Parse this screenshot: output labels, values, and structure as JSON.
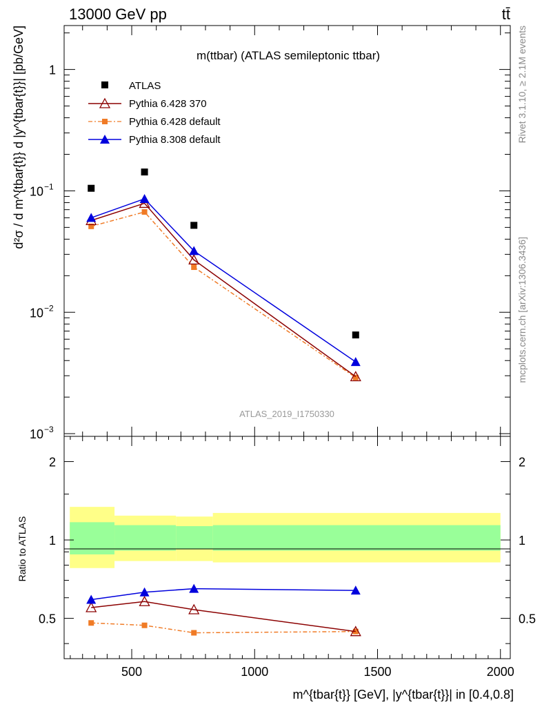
{
  "header": {
    "left": "13000 GeV pp",
    "right": "tt̄"
  },
  "side_labels": {
    "rivet": "Rivet 3.1.10, ≥ 2.1M events",
    "mcplots": "mcplots.cern.ch [arXiv:1306.3436]"
  },
  "chart_data": {
    "type": "scatter",
    "title": "m(ttbar) (ATLAS semileptonic ttbar)",
    "analysis_id": "ATLAS_2019_I1750330",
    "xlabel": "m^{tbar{t}} [GeV], |y^{tbar{t}}| in [0.4,0.8]",
    "ylabel": "d²σ / d m^{tbar{t}} d |y^{tbar{t}}| [pb/GeV]",
    "ratio_ylabel": "Ratio to ATLAS",
    "xlim": [
      225,
      2040
    ],
    "ylim": [
      0.00095,
      2.3
    ],
    "yscale": "log",
    "ratio_ylim": [
      0.35,
      2.5
    ],
    "x_ticks": [
      "500",
      "1000",
      "1500",
      "2000"
    ],
    "y_ticks": [
      "1",
      "10^-1",
      "10^-2",
      "10^-3"
    ],
    "ratio_y_ticks": [
      "0.5",
      "1",
      "2"
    ],
    "legend_position": "top-left",
    "x": [
      335,
      552,
      753,
      1411
    ],
    "series": [
      {
        "name": "ATLAS",
        "color": "#000000",
        "marker": "square",
        "values": [
          0.105,
          0.143,
          0.052,
          0.0065
        ]
      },
      {
        "name": "Pythia 6.428 370",
        "color": "#8b0000",
        "marker": "open-triangle",
        "values": [
          0.057,
          0.079,
          0.027,
          0.00295
        ]
      },
      {
        "name": "Pythia 6.428 default",
        "color": "#f07b26",
        "marker": "square",
        "line": "dashdot",
        "values": [
          0.051,
          0.067,
          0.0235,
          0.0029
        ]
      },
      {
        "name": "Pythia 8.308 default",
        "color": "#0000dd",
        "marker": "triangle",
        "values": [
          0.06,
          0.086,
          0.032,
          0.0039
        ]
      }
    ],
    "ratio_series": [
      {
        "name": "Pythia 6.428 370",
        "values": [
          0.55,
          0.58,
          0.54,
          0.445
        ]
      },
      {
        "name": "Pythia 6.428 default",
        "values": [
          0.48,
          0.47,
          0.44,
          0.445
        ]
      },
      {
        "name": "Pythia 8.308 default",
        "values": [
          0.59,
          0.63,
          0.65,
          0.64
        ]
      }
    ],
    "uncertainty_bands": {
      "bin_edges": [
        248,
        430,
        680,
        830,
        2000
      ],
      "yellow_lo": [
        0.78,
        0.83,
        0.83,
        0.82
      ],
      "yellow_hi": [
        1.34,
        1.24,
        1.23,
        1.27
      ],
      "green_lo": [
        0.88,
        0.91,
        0.92,
        0.91
      ],
      "green_hi": [
        1.17,
        1.14,
        1.13,
        1.14
      ],
      "colors": {
        "yellow": "#ffff88",
        "green": "#99ff99"
      }
    }
  }
}
